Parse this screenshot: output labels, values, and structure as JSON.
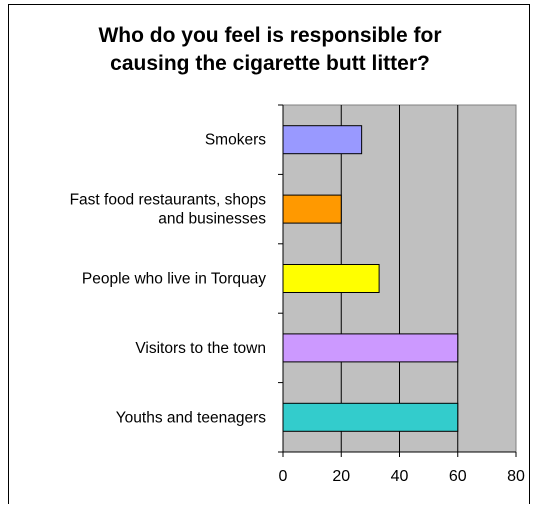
{
  "chart_data": {
    "type": "bar",
    "orientation": "horizontal",
    "title_lines": [
      "Who do you feel is responsible for",
      "causing the cigarette butt litter?"
    ],
    "categories": [
      [
        "Smokers"
      ],
      [
        "Fast food restaurants, shops",
        "and businesses"
      ],
      [
        "People who live in Torquay"
      ],
      [
        "Visitors to the town"
      ],
      [
        "Youths and teenagers"
      ]
    ],
    "values": [
      27,
      20,
      33,
      60,
      60
    ],
    "colors": [
      "#9999ff",
      "#ff9900",
      "#ffff00",
      "#cc99ff",
      "#33cccc"
    ],
    "xlim": [
      0,
      80
    ],
    "xticks": [
      "0",
      "20",
      "40",
      "60",
      "80"
    ],
    "plot_background": "#c0c0c0",
    "grid": true,
    "legend": "none"
  }
}
